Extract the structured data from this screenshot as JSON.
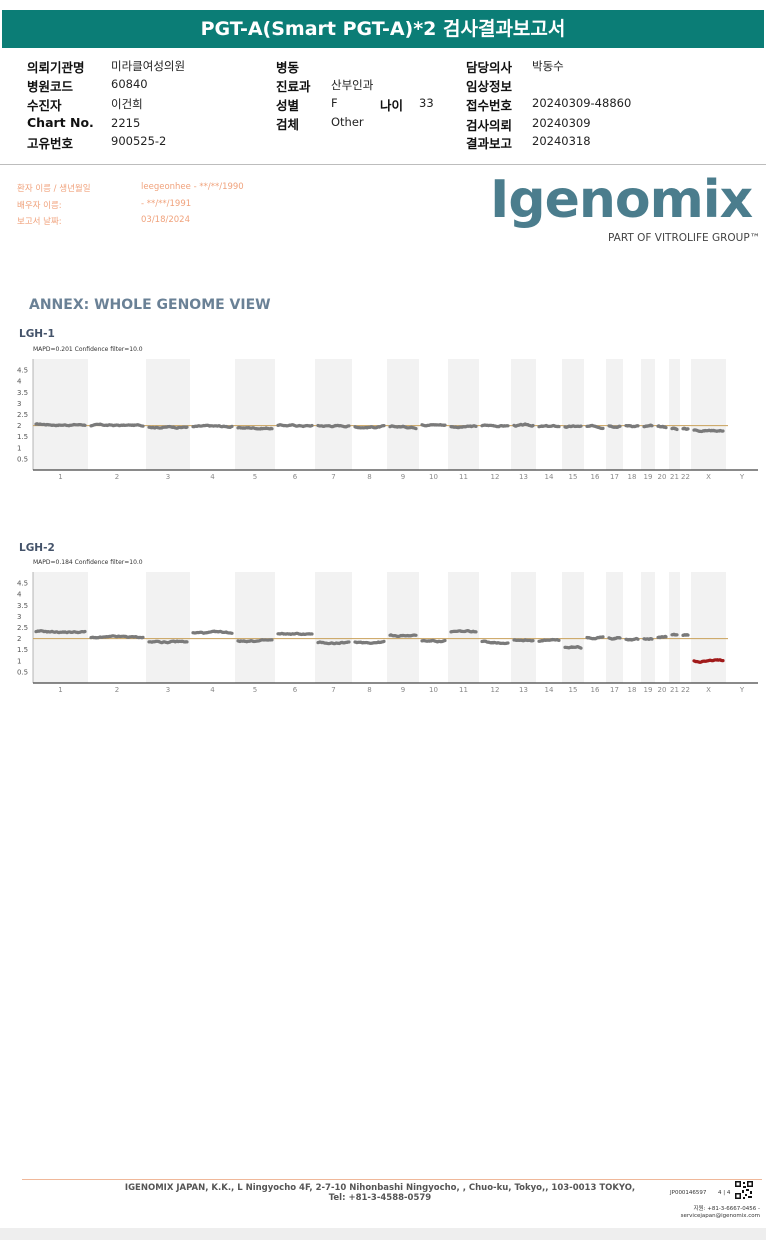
{
  "header": {
    "title": "PGT-A(Smart PGT-A)*2 검사결과보고서"
  },
  "info": {
    "institution_label": "의뢰기관명",
    "institution": "미라클여성의원",
    "hospital_code_label": "병원코드",
    "hospital_code": "60840",
    "patient_label": "수진자",
    "patient": "이건희",
    "chart_no_label": "Chart No.",
    "chart_no": "2215",
    "unique_no_label": "고유번호",
    "unique_no": "900525-2",
    "ward_label": "병동",
    "ward": "",
    "department_label": "진료과",
    "department": "산부인과",
    "sex_label": "성별",
    "sex": "F",
    "age_label": "나이",
    "age": "33",
    "specimen_label": "검체",
    "specimen": "Other",
    "doctor_label": "담당의사",
    "doctor": "박동수",
    "clinical_label": "임상정보",
    "clinical": "",
    "receipt_no_label": "접수번호",
    "receipt_no": "20240309-48860",
    "request_date_label": "검사의뢰",
    "request_date": "20240309",
    "report_date_label": "결과보고",
    "report_date": "20240318"
  },
  "patient_block": {
    "name_label": "환자 이름 / 생년월일",
    "name_value": "leegeonhee - **/**/1990",
    "partner_label": "배우자 이름:",
    "partner_value": "- **/**/1991",
    "report_label": "보고서 날짜:",
    "report_value": "03/18/2024"
  },
  "logo": {
    "name": "Igenomix",
    "reg": "®",
    "tagline": "PART OF VITROLIFE GROUP™"
  },
  "annex_title": "ANNEX: WHOLE GENOME VIEW",
  "colors": {
    "title_bar": "#0b7d76",
    "logo": "#4b7d8d",
    "points": "#7a7a7a",
    "loss": "#a11a1a",
    "baseline": "#c9a15a"
  },
  "chart_data": [
    {
      "type": "scatter",
      "sample": "LGH-1",
      "stats": "MAPD=0.201 Confidence filter=10.0",
      "ylim": [
        0,
        5
      ],
      "y_ticks": [
        "0.5",
        "1",
        "1.5",
        "2",
        "2.5",
        "3",
        "3.5",
        "4",
        "4.5"
      ],
      "baseline": 2,
      "chromosomes": [
        "1",
        "2",
        "3",
        "4",
        "5",
        "6",
        "7",
        "8",
        "9",
        "10",
        "11",
        "12",
        "13",
        "14",
        "15",
        "16",
        "17",
        "18",
        "19",
        "20",
        "21",
        "22",
        "X",
        "Y"
      ],
      "copy_number": [
        2.05,
        2.0,
        1.95,
        1.95,
        1.9,
        2.0,
        2.0,
        1.95,
        1.95,
        2.05,
        1.95,
        2.0,
        2.0,
        1.95,
        1.95,
        1.95,
        2.0,
        2.0,
        1.95,
        1.95,
        1.85,
        1.85,
        1.8,
        null
      ]
    },
    {
      "type": "scatter",
      "sample": "LGH-2",
      "stats": "MAPD=0.184 Confidence filter=10.0",
      "ylim": [
        0,
        5
      ],
      "y_ticks": [
        "0.5",
        "1",
        "1.5",
        "2",
        "2.5",
        "3",
        "3.5",
        "4",
        "4.5"
      ],
      "baseline": 2,
      "chromosomes": [
        "1",
        "2",
        "3",
        "4",
        "5",
        "6",
        "7",
        "8",
        "9",
        "10",
        "11",
        "12",
        "13",
        "14",
        "15",
        "16",
        "17",
        "18",
        "19",
        "20",
        "21",
        "22",
        "X",
        "Y"
      ],
      "copy_number": [
        2.3,
        2.05,
        1.85,
        2.25,
        1.9,
        2.2,
        1.8,
        1.85,
        2.15,
        1.9,
        2.3,
        1.85,
        1.95,
        1.9,
        1.6,
        2.05,
        2.05,
        1.95,
        2.0,
        2.05,
        2.15,
        2.15,
        1.0,
        null
      ]
    }
  ],
  "footer": {
    "address": "IGENOMIX JAPAN, K.K., L Ningyocho 4F, 2-7-10 Nihonbashi Ningyocho, , Chuo-ku, Tokyo,, 103-0013 TOKYO, Tel: +81-3-4588-0579",
    "doc_code": "JP000146597",
    "page": "4 | 4",
    "contact": "지원: +81-3-6667-0456 - servicejapan@igenomix.com"
  }
}
